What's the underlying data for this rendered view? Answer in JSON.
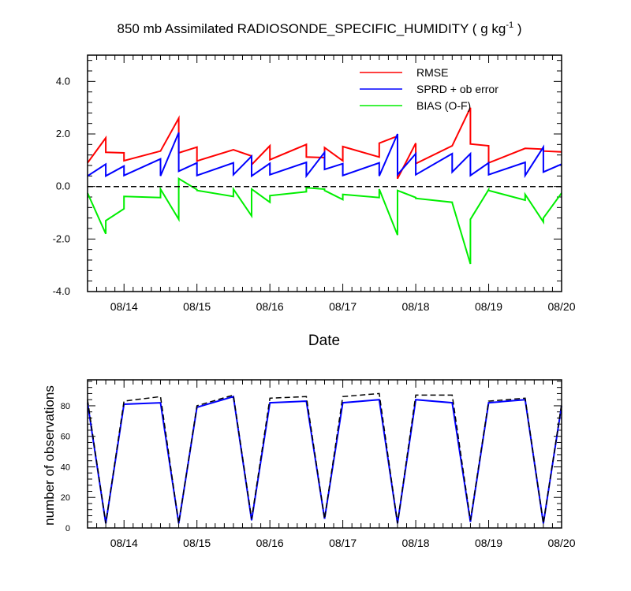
{
  "chart_data": [
    {
      "type": "line",
      "title_main": "850 mb Assimilated RADIOSONDE_SPECIFIC_HUMIDITY ( g kg",
      "title_sup": "-1",
      "title_end": " )",
      "xlabel": "Date",
      "ylabel": "",
      "ylim": [
        -4.0,
        5.0
      ],
      "xlim": [
        0.0,
        6.5
      ],
      "yticks": [
        -4.0,
        -2.0,
        0.0,
        2.0,
        4.0
      ],
      "ytick_labels": [
        "-4.0",
        "-2.0",
        "0.0",
        "2.0",
        "4.0"
      ],
      "xticks": [
        0.5,
        1.5,
        2.5,
        3.5,
        4.5,
        5.5,
        6.5
      ],
      "xtick_labels": [
        "08/14",
        "08/15",
        "08/16",
        "08/17",
        "08/18",
        "08/19",
        "08/20"
      ],
      "legend": [
        "RMSE",
        "SPRD + ob error",
        "BIAS (O-F)"
      ],
      "series": [
        {
          "name": "RMSE",
          "color": "#ff0000",
          "x": [
            0,
            0.25,
            0.25,
            0.5,
            0.5,
            1.0,
            1.25,
            1.25,
            1.5,
            1.5,
            2.0,
            2.25,
            2.25,
            2.5,
            2.5,
            3.0,
            3.0,
            3.25,
            3.25,
            3.5,
            3.5,
            4.0,
            4.0,
            4.25,
            4.25,
            4.5,
            4.5,
            5.0,
            5.25,
            5.25,
            5.5,
            5.5,
            6.0,
            6.25,
            6.25,
            6.5
          ],
          "y": [
            0.9,
            1.85,
            1.3,
            1.28,
            0.98,
            1.35,
            2.6,
            1.28,
            1.5,
            0.97,
            1.4,
            1.16,
            0.83,
            1.55,
            1.02,
            1.6,
            1.12,
            1.1,
            1.48,
            0.98,
            1.52,
            1.12,
            1.65,
            1.92,
            0.3,
            1.65,
            0.87,
            1.55,
            3.0,
            1.62,
            1.55,
            0.9,
            1.45,
            1.42,
            1.35,
            1.32
          ]
        },
        {
          "name": "SPRD + ob error",
          "color": "#0000ff",
          "x": [
            0,
            0.25,
            0.25,
            0.5,
            0.5,
            1.0,
            1.0,
            1.25,
            1.25,
            1.5,
            1.5,
            2.0,
            2.0,
            2.25,
            2.25,
            2.5,
            2.5,
            3.0,
            3.0,
            3.25,
            3.25,
            3.5,
            3.5,
            4.0,
            4.0,
            4.25,
            4.25,
            4.5,
            4.5,
            5.0,
            5.0,
            5.25,
            5.25,
            5.5,
            5.5,
            6.0,
            6.0,
            6.25,
            6.25,
            6.5
          ],
          "y": [
            0.4,
            0.85,
            0.4,
            0.78,
            0.42,
            1.05,
            0.4,
            2.05,
            0.58,
            0.9,
            0.42,
            0.9,
            0.45,
            1.15,
            0.4,
            0.88,
            0.45,
            0.92,
            0.4,
            1.3,
            0.65,
            0.87,
            0.42,
            0.9,
            0.4,
            2.0,
            0.45,
            1.25,
            0.45,
            1.25,
            0.55,
            1.25,
            0.42,
            0.9,
            0.45,
            0.92,
            0.42,
            1.5,
            0.55,
            0.85
          ]
        },
        {
          "name": "BIAS (O-F)",
          "color": "#00ee00",
          "x": [
            0,
            0.25,
            0.25,
            0.5,
            0.5,
            1.0,
            1.0,
            1.25,
            1.25,
            1.5,
            1.5,
            2.0,
            2.0,
            2.25,
            2.25,
            2.5,
            2.5,
            3.0,
            3.0,
            3.25,
            3.25,
            3.5,
            3.5,
            4.0,
            4.0,
            4.25,
            4.25,
            4.5,
            4.5,
            5.0,
            5.0,
            5.25,
            5.25,
            5.5,
            5.5,
            6.0,
            6.0,
            6.25,
            6.25,
            6.5
          ],
          "y": [
            -0.25,
            -1.8,
            -1.3,
            -0.85,
            -0.38,
            -0.42,
            -0.1,
            -1.25,
            0.3,
            -0.12,
            -0.15,
            -0.38,
            -0.1,
            -1.12,
            -0.1,
            -0.6,
            -0.35,
            -0.2,
            -0.05,
            -0.1,
            -0.15,
            -0.5,
            -0.3,
            -0.42,
            -0.1,
            -1.85,
            -0.15,
            -0.42,
            -0.45,
            -0.6,
            -0.62,
            -2.95,
            -1.25,
            -0.12,
            -0.15,
            -0.52,
            -0.3,
            -1.35,
            -1.2,
            -0.25
          ]
        },
        {
          "name": "zero line",
          "color": "#000000",
          "x": [
            0,
            6.5
          ],
          "y": [
            0,
            0
          ]
        }
      ]
    },
    {
      "type": "line",
      "title": "",
      "xlabel": "",
      "ylabel": "number of observations",
      "ylim": [
        0,
        97
      ],
      "xlim": [
        0.0,
        6.5
      ],
      "yticks": [
        0,
        20,
        40,
        60,
        80
      ],
      "ytick_labels": [
        "0",
        "20",
        "40",
        "60",
        "80"
      ],
      "xticks": [
        0.5,
        1.5,
        2.5,
        3.5,
        4.5,
        5.5,
        6.5
      ],
      "xtick_labels": [
        "08/14",
        "08/15",
        "08/16",
        "08/17",
        "08/18",
        "08/19",
        "08/20"
      ],
      "series": [
        {
          "name": "assimilated",
          "color": "#0000ff",
          "x": [
            0,
            0.25,
            0.5,
            1.0,
            1.25,
            1.5,
            2.0,
            2.25,
            2.5,
            3.0,
            3.25,
            3.5,
            4.0,
            4.25,
            4.5,
            5.0,
            5.25,
            5.5,
            6.0,
            6.25,
            6.5
          ],
          "y": [
            82,
            3,
            81,
            82,
            3,
            79,
            86,
            5,
            82,
            83,
            6,
            82,
            84,
            3,
            84,
            82,
            4,
            82,
            84,
            3,
            80
          ]
        },
        {
          "name": "total",
          "color": "#000000",
          "x": [
            0,
            0.25,
            0.5,
            1.0,
            1.25,
            1.5,
            2.0,
            2.25,
            2.5,
            3.0,
            3.25,
            3.5,
            4.0,
            4.25,
            4.5,
            5.0,
            5.25,
            5.5,
            6.0,
            6.25,
            6.5
          ],
          "y": [
            84,
            3,
            83,
            86,
            3,
            80,
            87,
            6,
            85,
            86,
            6,
            86,
            88,
            3,
            87,
            87,
            5,
            83,
            85,
            3,
            81
          ]
        }
      ]
    }
  ]
}
